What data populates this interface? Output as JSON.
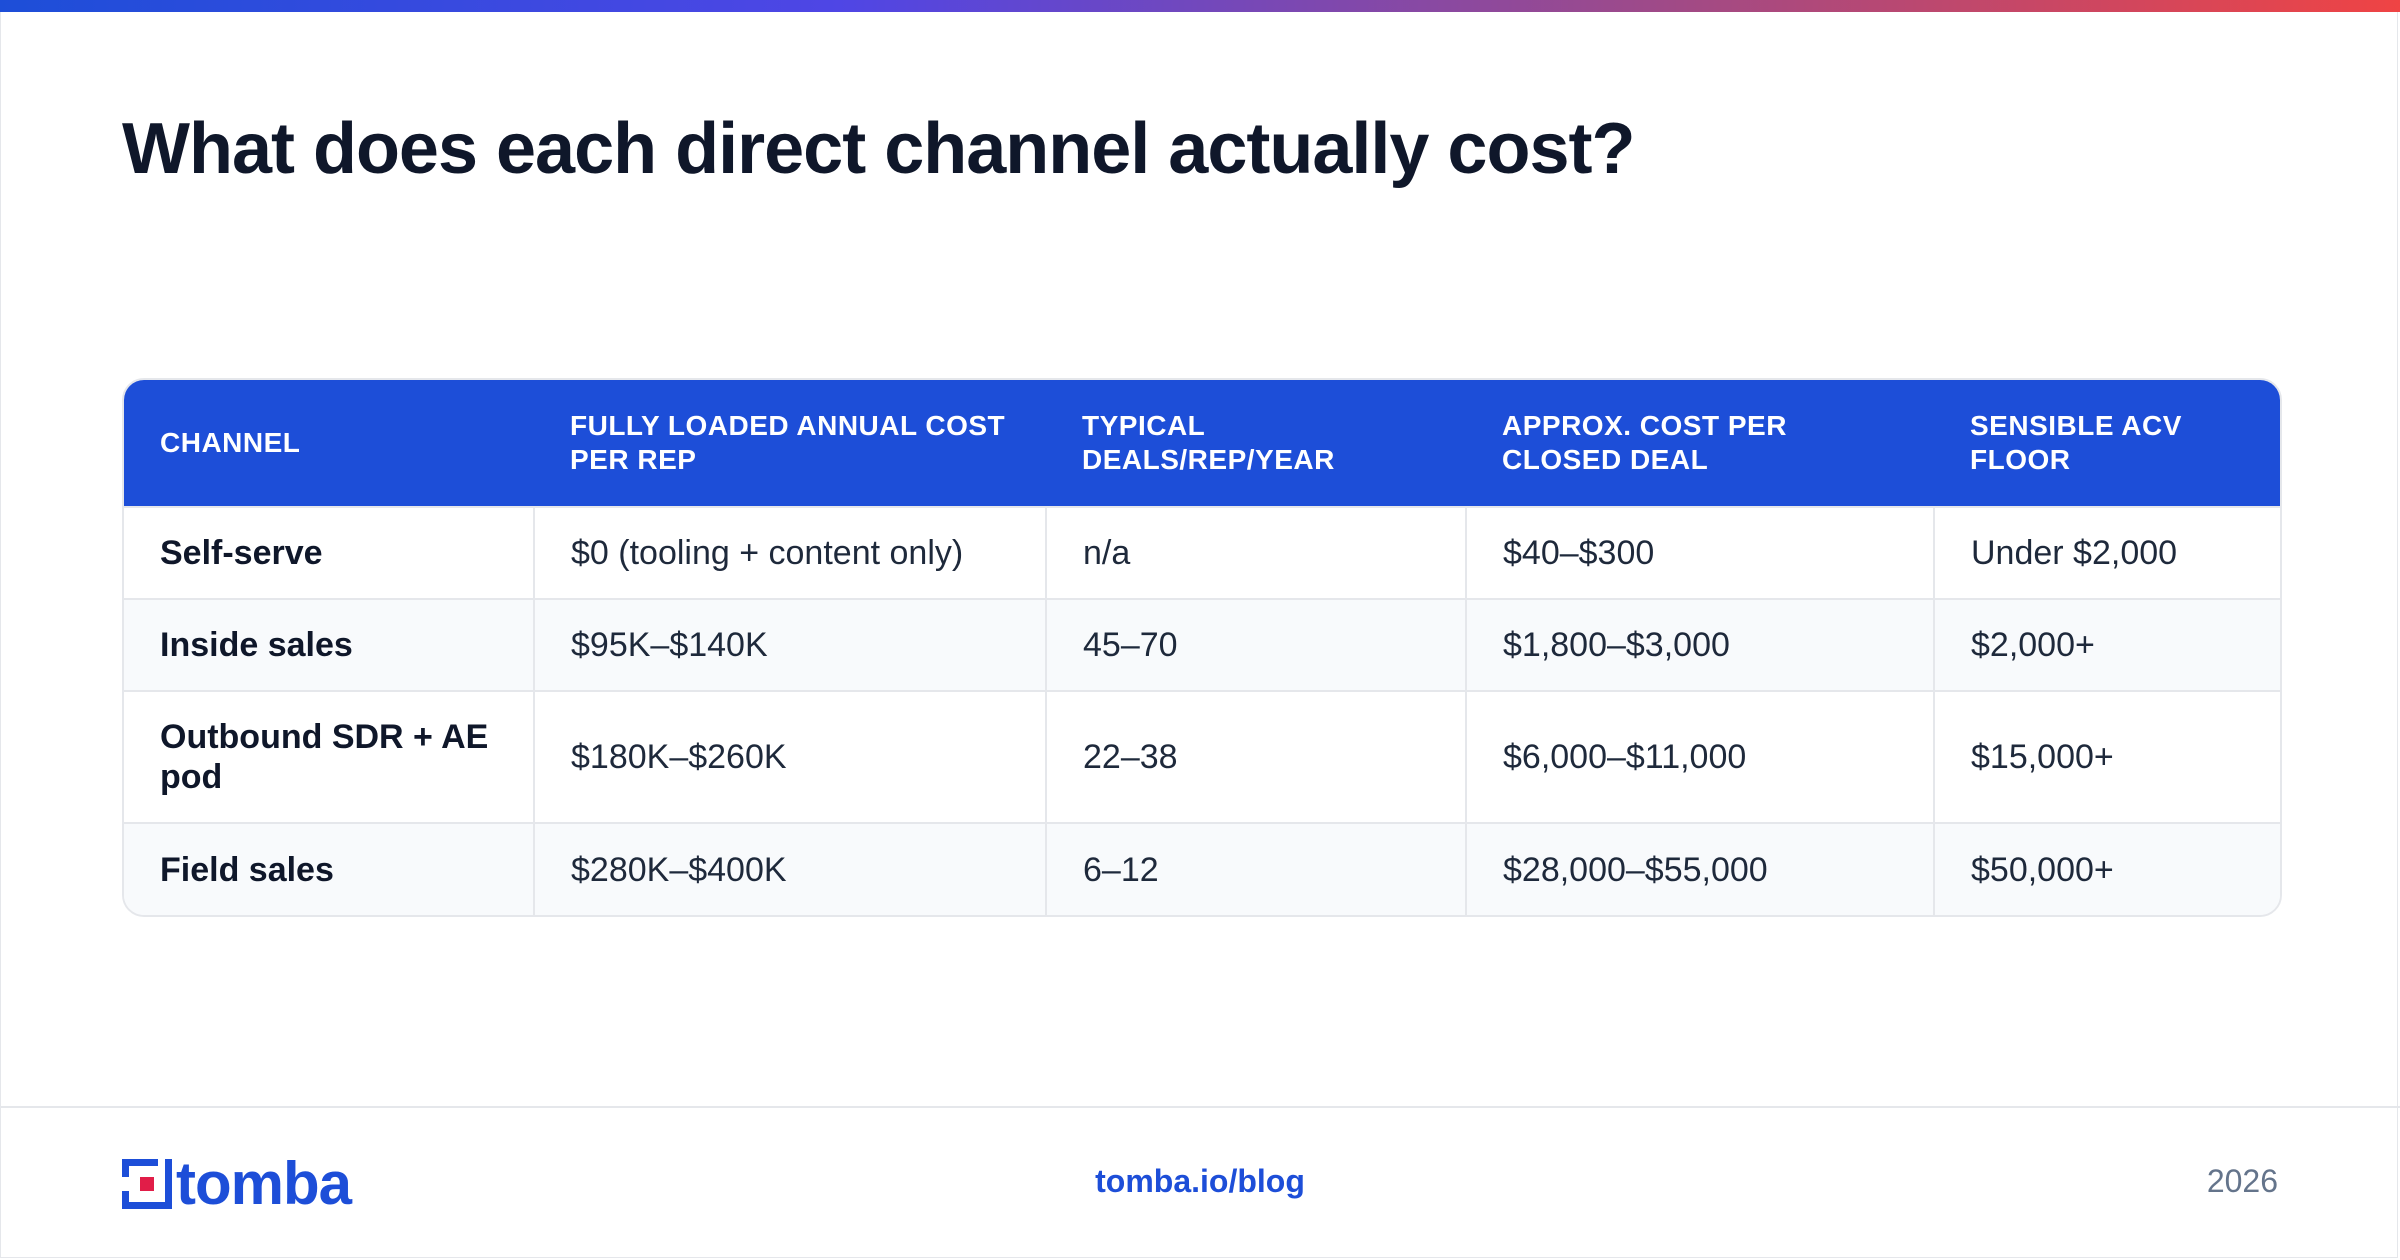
{
  "title": "What does each direct channel actually cost?",
  "table": {
    "headers": [
      "CHANNEL",
      "FULLY LOADED ANNUAL COST PER REP",
      "TYPICAL DEALS/REP/YEAR",
      "APPROX. COST PER CLOSED DEAL",
      "SENSIBLE ACV FLOOR"
    ],
    "rows": [
      [
        "Self-serve",
        "$0 (tooling + content only)",
        "n/a",
        "$40–$300",
        "Under $2,000"
      ],
      [
        "Inside sales",
        "$95K–$140K",
        "45–70",
        "$1,800–$3,000",
        "$2,000+"
      ],
      [
        "Outbound SDR + AE pod",
        "$180K–$260K",
        "22–38",
        "$6,000–$11,000",
        "$15,000+"
      ],
      [
        "Field sales",
        "$280K–$400K",
        "6–12",
        "$28,000–$55,000",
        "$50,000+"
      ]
    ]
  },
  "footer": {
    "logo_text": "tomba",
    "link": "tomba.io/blog",
    "year": "2026"
  },
  "colors": {
    "accent": "#1d4ed8",
    "logo_red": "#e11d48"
  },
  "icons": {
    "logo_mark": "tomba-logo-icon"
  }
}
